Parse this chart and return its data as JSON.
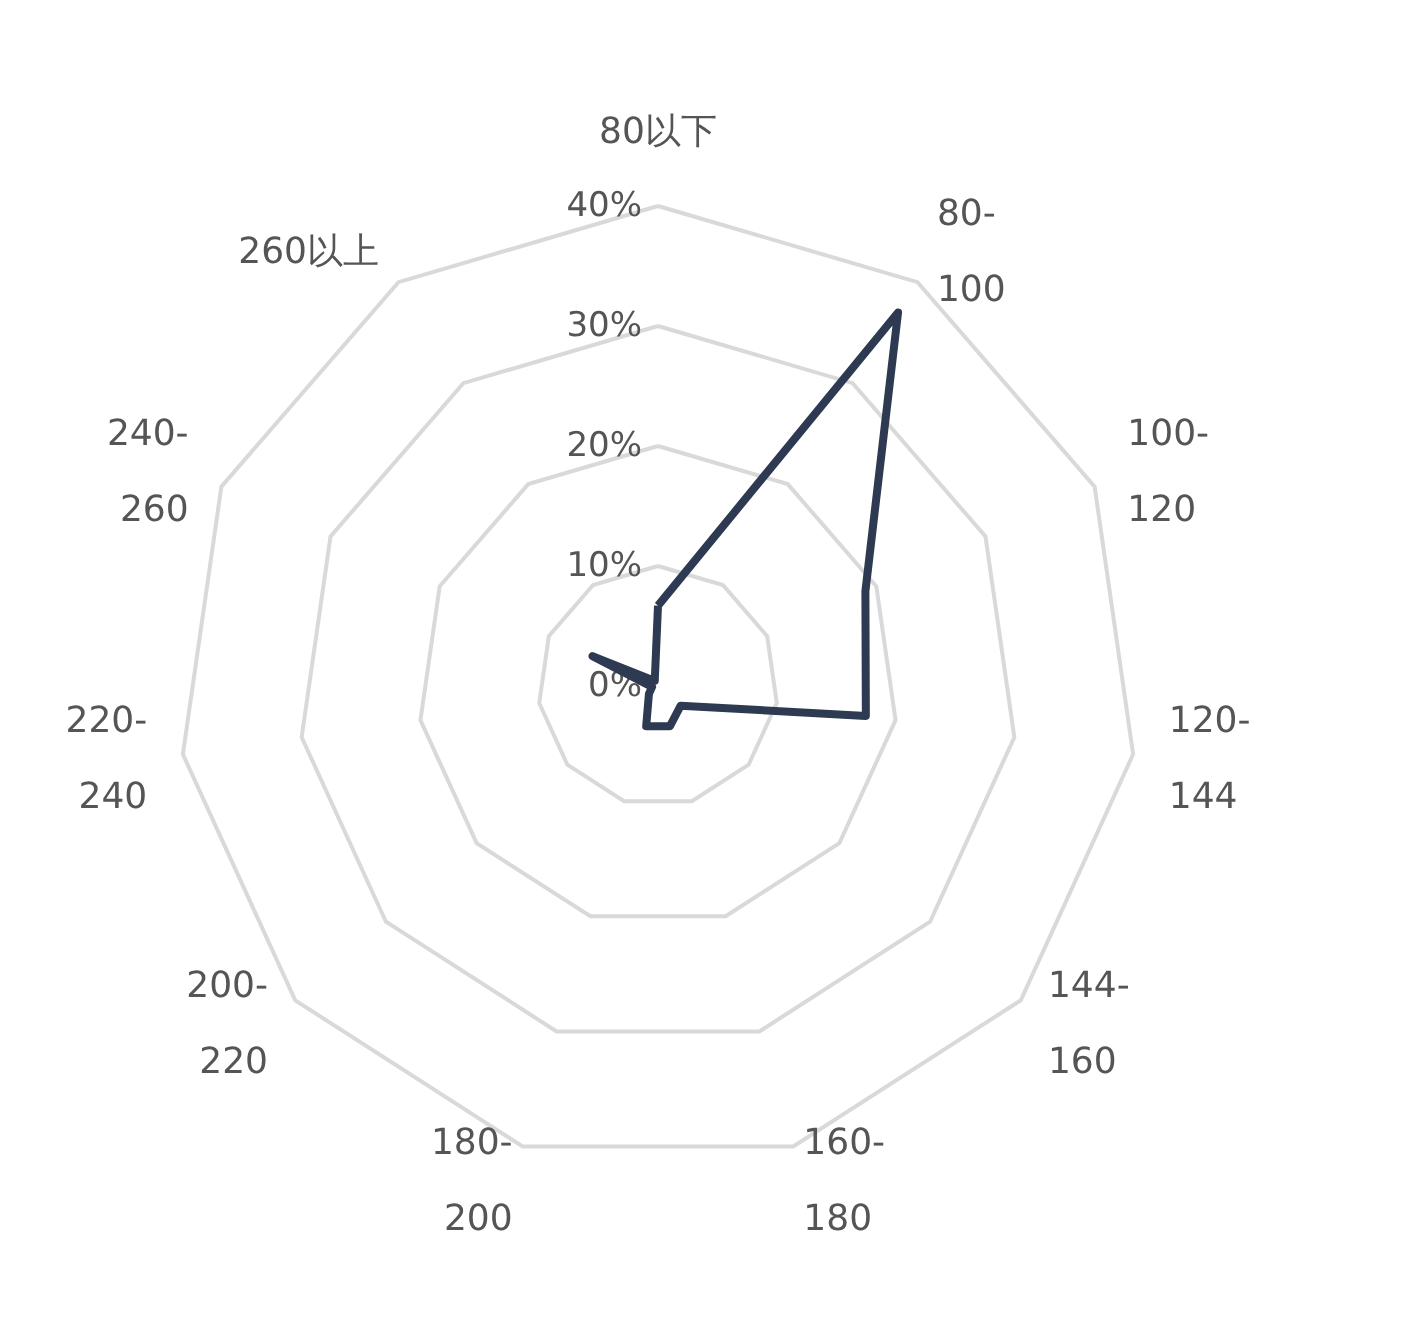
{
  "chart_data": {
    "type": "radar",
    "categories": [
      "80以下",
      "80-100",
      "100-120",
      "120-144",
      "144-160",
      "160-180",
      "180-200",
      "200-220",
      "220-240",
      "240-260",
      "260以上"
    ],
    "series": [
      {
        "color": "#2e3a52",
        "values": [
          6.7,
          37,
          19,
          17.5,
          2.5,
          3.5,
          3.5,
          1,
          0.5,
          6,
          0.5
        ]
      }
    ],
    "ylim": [
      0,
      40
    ],
    "yticks": [
      {
        "value": 0,
        "label": "0%"
      },
      {
        "value": 10,
        "label": "10%"
      },
      {
        "value": 20,
        "label": "20%"
      },
      {
        "value": 30,
        "label": "30%"
      },
      {
        "value": 40,
        "label": "40%"
      }
    ],
    "grid": true,
    "marker": "none",
    "line_style": "solid"
  }
}
